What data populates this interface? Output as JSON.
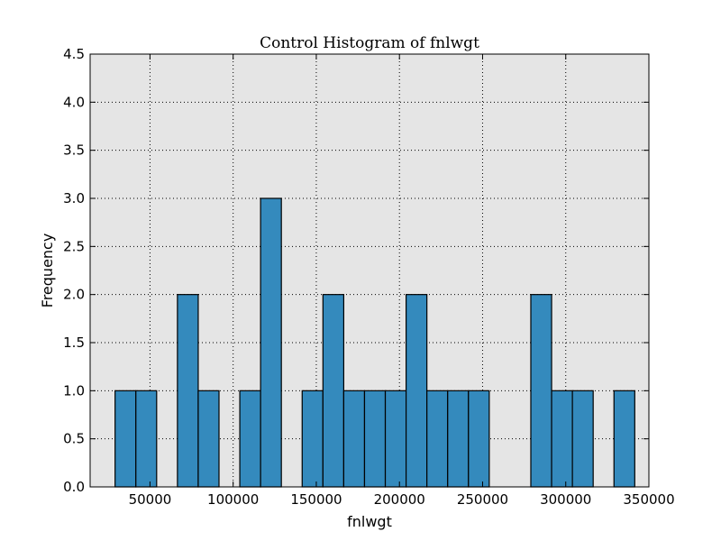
{
  "chart_data": {
    "type": "bar",
    "title": "Control Histogram of fnlwgt",
    "xlabel": "fnlwgt",
    "ylabel": "Frequency",
    "xlim": [
      14000,
      350000
    ],
    "ylim": [
      0,
      4.5
    ],
    "grid": true,
    "bins": [
      {
        "x0": 29000,
        "x1": 41500,
        "count": 1
      },
      {
        "x0": 41500,
        "x1": 54000,
        "count": 1
      },
      {
        "x0": 66500,
        "x1": 79000,
        "count": 2
      },
      {
        "x0": 79000,
        "x1": 91500,
        "count": 1
      },
      {
        "x0": 104000,
        "x1": 116500,
        "count": 1
      },
      {
        "x0": 116500,
        "x1": 129000,
        "count": 3
      },
      {
        "x0": 141500,
        "x1": 154000,
        "count": 1
      },
      {
        "x0": 154000,
        "x1": 166500,
        "count": 2
      },
      {
        "x0": 166500,
        "x1": 179000,
        "count": 1
      },
      {
        "x0": 179000,
        "x1": 191500,
        "count": 1
      },
      {
        "x0": 191500,
        "x1": 204000,
        "count": 1
      },
      {
        "x0": 204000,
        "x1": 216500,
        "count": 2
      },
      {
        "x0": 216500,
        "x1": 229000,
        "count": 1
      },
      {
        "x0": 229000,
        "x1": 241500,
        "count": 1
      },
      {
        "x0": 241500,
        "x1": 254000,
        "count": 1
      },
      {
        "x0": 279000,
        "x1": 291500,
        "count": 2
      },
      {
        "x0": 291500,
        "x1": 304000,
        "count": 1
      },
      {
        "x0": 304000,
        "x1": 316500,
        "count": 1
      },
      {
        "x0": 329000,
        "x1": 341500,
        "count": 1
      }
    ],
    "x_ticks": [
      {
        "value": 50000,
        "label": "50000"
      },
      {
        "value": 100000,
        "label": "100000"
      },
      {
        "value": 150000,
        "label": "150000"
      },
      {
        "value": 200000,
        "label": "200000"
      },
      {
        "value": 250000,
        "label": "250000"
      },
      {
        "value": 300000,
        "label": "300000"
      },
      {
        "value": 350000,
        "label": "350000"
      }
    ],
    "y_ticks": [
      {
        "value": 0.0,
        "label": "0.0"
      },
      {
        "value": 0.5,
        "label": "0.5"
      },
      {
        "value": 1.0,
        "label": "1.0"
      },
      {
        "value": 1.5,
        "label": "1.5"
      },
      {
        "value": 2.0,
        "label": "2.0"
      },
      {
        "value": 2.5,
        "label": "2.5"
      },
      {
        "value": 3.0,
        "label": "3.0"
      },
      {
        "value": 3.5,
        "label": "3.5"
      },
      {
        "value": 4.0,
        "label": "4.0"
      },
      {
        "value": 4.5,
        "label": "4.5"
      }
    ],
    "colors": {
      "bar": "#348abd",
      "bar_edge": "#000000",
      "plot_bg": "#e5e5e5",
      "grid": "#000000"
    }
  }
}
